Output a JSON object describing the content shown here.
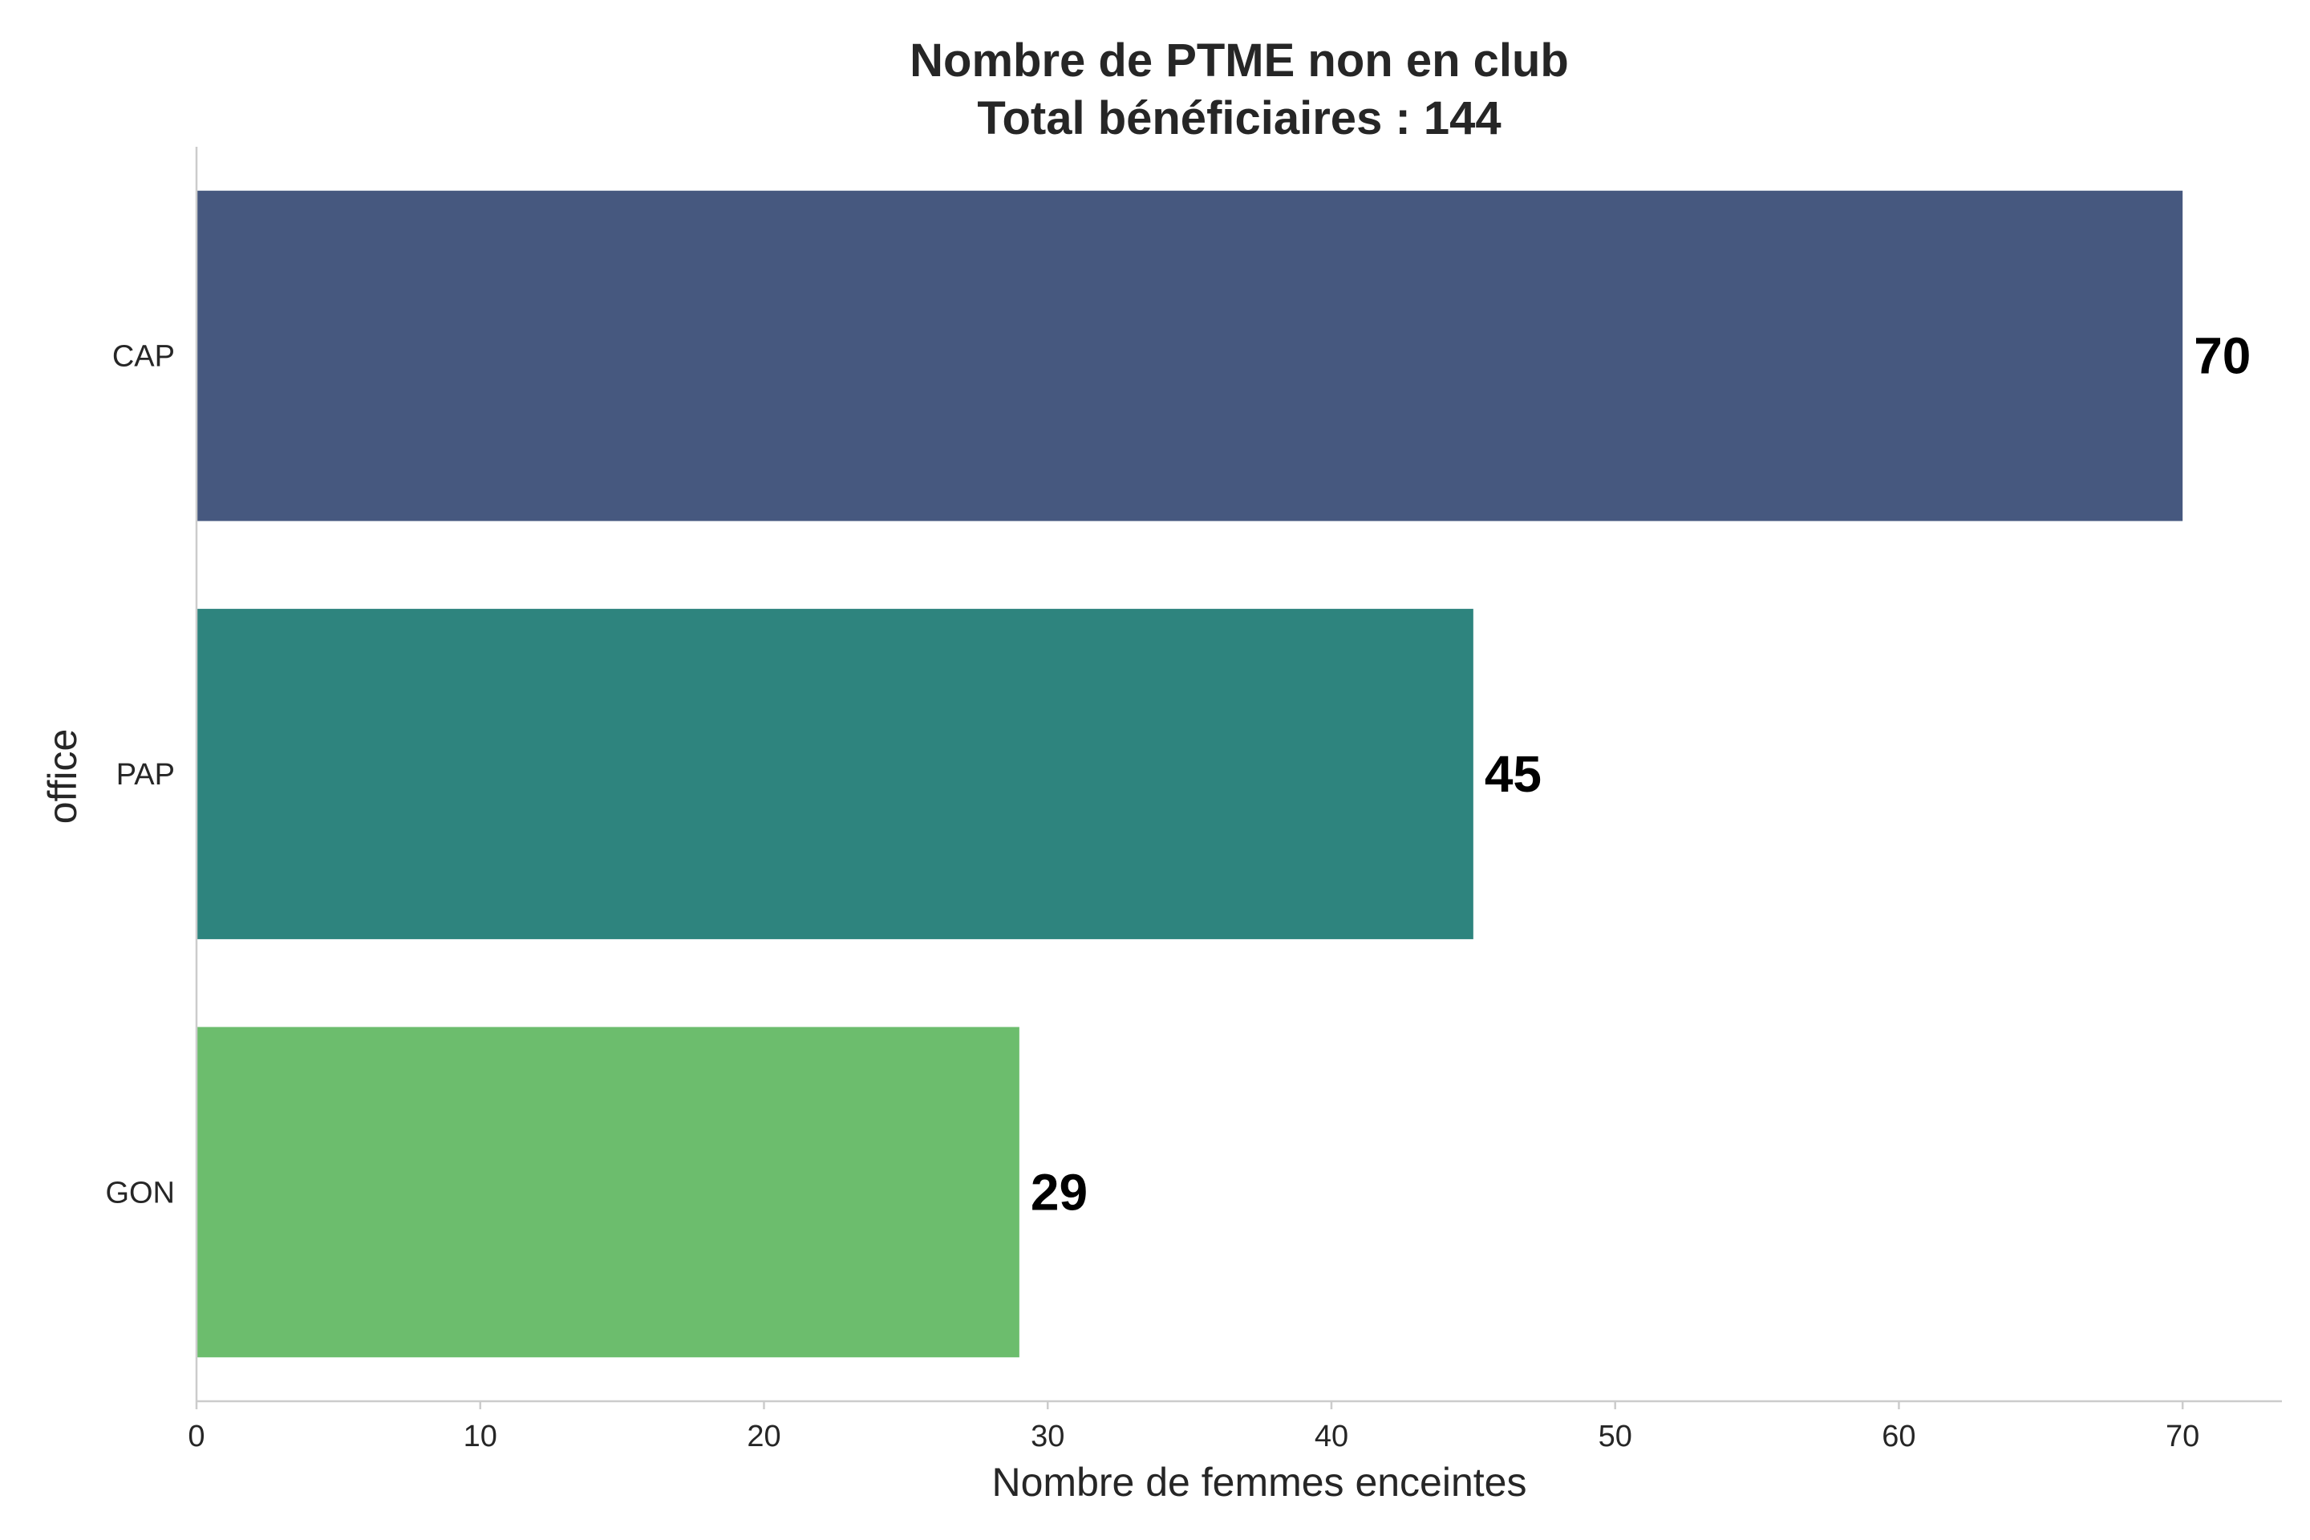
{
  "chart_data": {
    "type": "bar",
    "orientation": "horizontal",
    "title": "Nombre de PTME non en club",
    "subtitle": "Total bénéficiaires : 144",
    "xlabel": "Nombre de femmes enceintes",
    "ylabel": "office",
    "categories": [
      "CAP",
      "PAP",
      "GON"
    ],
    "values": [
      70,
      45,
      29
    ],
    "value_labels": [
      "70",
      "45",
      "29"
    ],
    "colors": [
      "#46587f",
      "#2e847e",
      "#6cbd6d"
    ],
    "xlim": [
      0,
      73.5
    ],
    "xticks": [
      0,
      10,
      20,
      30,
      40,
      50,
      60,
      70
    ],
    "xtick_labels": [
      "0",
      "10",
      "20",
      "30",
      "40",
      "50",
      "60",
      "70"
    ],
    "grid": false,
    "legend": "none"
  }
}
